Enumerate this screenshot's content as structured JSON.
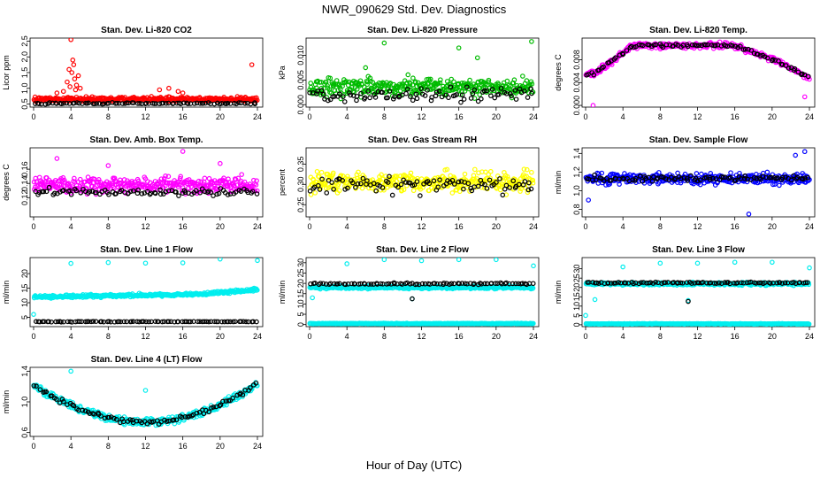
{
  "title": "NWR_090629  Std. Dev. Diagnostics",
  "xlabel": "Hour of Day (UTC)",
  "chart_data": [
    {
      "type": "scatter",
      "title": "Stan. Dev. Li-820 CO2",
      "ylabel": "Licor ppm",
      "xlim": [
        0,
        24
      ],
      "xticks": [
        "0",
        "4",
        "8",
        "12",
        "16",
        "20",
        "24"
      ],
      "ylim": [
        0.4,
        2.6
      ],
      "yticks": [
        "0.5",
        "1.0",
        "1.5",
        "2.0",
        "2.5"
      ],
      "ytick_values": [
        0.5,
        1.0,
        1.5,
        2.0,
        2.5
      ],
      "series": [
        {
          "color": "#ff0000",
          "base": 0.65,
          "spread": 0.12,
          "x": [
            3.6,
            3.8,
            4.0,
            4.1,
            4.2,
            4.4,
            4.6,
            4.8,
            5.0,
            4.3,
            3.9,
            4.5,
            13.5,
            14.5,
            15.5,
            16.0,
            23.4,
            3.2,
            2.5
          ],
          "y": [
            1.2,
            1.6,
            2.55,
            1.5,
            1.9,
            1.3,
            1.1,
            1.4,
            1.0,
            1.75,
            1.05,
            0.95,
            0.95,
            1.0,
            0.9,
            0.85,
            1.75,
            0.9,
            0.85
          ]
        },
        {
          "color": "#000000",
          "base": 0.52,
          "spread": 0.04,
          "x": [],
          "y": []
        }
      ]
    },
    {
      "type": "scatter",
      "title": "Stan. Dev. Li-820 Pressure",
      "ylabel": "kPa",
      "xlim": [
        0,
        24
      ],
      "xticks": [
        "0",
        "4",
        "8",
        "12",
        "16",
        "20",
        "24"
      ],
      "ylim": [
        -0.0005,
        0.0135
      ],
      "yticks": [
        "0.000",
        "0.005",
        "0.010"
      ],
      "ytick_values": [
        0.0,
        0.005,
        0.01
      ],
      "series": [
        {
          "color": "#00bb00",
          "base": 0.0035,
          "spread": 0.003,
          "x": [
            8.0,
            16.0,
            23.8,
            18.0,
            6.0
          ],
          "y": [
            0.0125,
            0.0115,
            0.0128,
            0.0095,
            0.0075
          ]
        },
        {
          "color": "#000000",
          "base": 0.002,
          "spread": 0.0022,
          "x": [],
          "y": []
        }
      ]
    },
    {
      "type": "scatter",
      "title": "Stan. Dev. Li-820 Temp.",
      "ylabel": "degrees C",
      "xlim": [
        0,
        24
      ],
      "xticks": [
        "0",
        "4",
        "8",
        "12",
        "16",
        "20",
        "24"
      ],
      "ylim": [
        -0.0003,
        0.0118
      ],
      "yticks": [
        "0.000",
        "0.004",
        "0.008"
      ],
      "ytick_values": [
        0.0,
        0.004,
        0.008
      ],
      "series": [
        {
          "color": "#ff00ff",
          "profile": "temp",
          "spread": 0.0008,
          "x": [
            0.8,
            23.5
          ],
          "y": [
            0.0,
            0.0015
          ]
        },
        {
          "color": "#000000",
          "profile": "temp",
          "spread": 0.0005,
          "x": [],
          "y": []
        }
      ]
    },
    {
      "type": "scatter",
      "title": "Stan. Dev. Amb. Box Temp.",
      "ylabel": "degrees C",
      "xlim": [
        0,
        24
      ],
      "xticks": [
        "0",
        "4",
        "8",
        "12",
        "16",
        "20",
        "24"
      ],
      "ylim": [
        0.093,
        0.19
      ],
      "yticks": [
        "0.12",
        "0.14",
        "0.16"
      ],
      "ytick_values": [
        0.12,
        0.14,
        0.16
      ],
      "series": [
        {
          "color": "#ff00ff",
          "base": 0.138,
          "spread": 0.018,
          "x": [
            16.0,
            2.5,
            8.0,
            20.0
          ],
          "y": [
            0.185,
            0.175,
            0.165,
            0.168
          ]
        },
        {
          "color": "#000000",
          "base": 0.128,
          "spread": 0.008,
          "x": [],
          "y": []
        }
      ]
    },
    {
      "type": "scatter",
      "title": "Stan. Dev. Gas Stream RH",
      "ylabel": "percent",
      "xlim": [
        0,
        24
      ],
      "xticks": [
        "0",
        "4",
        "8",
        "12",
        "16",
        "20",
        "24"
      ],
      "ylim": [
        0.22,
        0.39
      ],
      "yticks": [
        "0.25",
        "0.30",
        "0.35"
      ],
      "ytick_values": [
        0.25,
        0.3,
        0.35
      ],
      "series": [
        {
          "color": "#ffff00",
          "base": 0.305,
          "spread": 0.04,
          "x": [],
          "y": []
        },
        {
          "color": "#000000",
          "base": 0.3,
          "spread": 0.035,
          "x": [],
          "y": []
        }
      ]
    },
    {
      "type": "scatter",
      "title": "Stan. Dev. Sample Flow",
      "ylabel": "ml/min",
      "xlim": [
        0,
        24
      ],
      "xticks": [
        "0",
        "4",
        "8",
        "12",
        "16",
        "20",
        "24"
      ],
      "ylim": [
        0.72,
        1.46
      ],
      "yticks": [
        "0.8",
        "1.0",
        "1.2",
        "1.4"
      ],
      "ytick_values": [
        0.8,
        1.0,
        1.2,
        1.4
      ],
      "series": [
        {
          "color": "#0000ff",
          "base": 1.13,
          "spread": 0.1,
          "x": [
            17.5,
            0.3,
            23.5,
            22.5
          ],
          "y": [
            0.75,
            0.9,
            1.42,
            1.38
          ]
        },
        {
          "color": "#000000",
          "base": 1.13,
          "spread": 0.05,
          "x": [],
          "y": []
        }
      ]
    },
    {
      "type": "scatter",
      "title": "Stan. Dev. Line 1 Flow",
      "ylabel": "ml/min",
      "xlim": [
        0,
        24
      ],
      "xticks": [
        "0",
        "4",
        "8",
        "12",
        "16",
        "20",
        "24"
      ],
      "ylim": [
        1.8,
        25.5
      ],
      "yticks": [
        "5",
        "10",
        "15",
        "20"
      ],
      "ytick_values": [
        5,
        10,
        15,
        20
      ],
      "series": [
        {
          "color": "#00eeee",
          "profile": "line1",
          "spread": 0.8,
          "x": [
            4.0,
            8.0,
            12.0,
            16.0,
            20.0,
            24.0,
            0.0
          ],
          "y": [
            23.5,
            23.8,
            23.6,
            23.7,
            25.0,
            24.5,
            6.0
          ]
        },
        {
          "color": "#000000",
          "base": 3.5,
          "spread": 0.15,
          "x": [],
          "y": []
        }
      ]
    },
    {
      "type": "scatter",
      "title": "Stan. Dev. Line 2 Flow",
      "ylabel": "ml/min",
      "xlim": [
        0,
        24
      ],
      "xticks": [
        "0",
        "4",
        "8",
        "12",
        "16",
        "20",
        "24"
      ],
      "ylim": [
        -1,
        32.5
      ],
      "yticks": [
        "0",
        "5",
        "10",
        "15",
        "20",
        "25",
        "30"
      ],
      "ytick_values": [
        0,
        5,
        10,
        15,
        20,
        25,
        30
      ],
      "series": [
        {
          "color": "#00eeee",
          "base": 18.0,
          "spread": 1.2,
          "x": [
            4.0,
            8.0,
            12.0,
            16.0,
            20.0,
            24.0,
            0.3,
            11.0
          ],
          "y": [
            29.5,
            31.5,
            31.0,
            31.5,
            31.5,
            28.5,
            13.0,
            12.5
          ]
        },
        {
          "color": "#000000",
          "base": 19.8,
          "spread": 0.6,
          "x": [
            11.0
          ],
          "y": [
            12.5
          ]
        },
        {
          "color": "#00eeee",
          "base": 0.5,
          "spread": 0.3,
          "x": [],
          "y": []
        }
      ]
    },
    {
      "type": "scatter",
      "title": "Stan. Dev. Line 3 Flow",
      "ylabel": "ml/min",
      "xlim": [
        0,
        24
      ],
      "xticks": [
        "0",
        "4",
        "8",
        "12",
        "16",
        "20",
        "24"
      ],
      "ylim": [
        -1,
        36
      ],
      "yticks": [
        "0",
        "5",
        "10",
        "15",
        "20",
        "25",
        "30"
      ],
      "ytick_values": [
        0,
        5,
        10,
        15,
        20,
        25,
        30
      ],
      "series": [
        {
          "color": "#00eeee",
          "base": 22.0,
          "spread": 1.2,
          "x": [
            1.0,
            4.0,
            8.0,
            12.0,
            16.0,
            20.0,
            24.0,
            0.0,
            11.0
          ],
          "y": [
            13.5,
            31.0,
            33.0,
            33.0,
            33.5,
            33.5,
            30.5,
            5.0,
            13.0
          ]
        },
        {
          "color": "#000000",
          "base": 22.5,
          "spread": 0.6,
          "x": [
            11.0
          ],
          "y": [
            12.5
          ]
        },
        {
          "color": "#00eeee",
          "base": 0.5,
          "spread": 0.3,
          "x": [],
          "y": []
        }
      ]
    },
    {
      "type": "scatter",
      "title": "Stan. Dev. Line 4 (LT) Flow",
      "ylabel": "ml/min",
      "xlim": [
        0,
        24
      ],
      "xticks": [
        "0",
        "4",
        "8",
        "12",
        "16",
        "20",
        "24"
      ],
      "ylim": [
        0.55,
        1.45
      ],
      "yticks": [
        "0.6",
        "1.0",
        "1.4"
      ],
      "ytick_values": [
        0.6,
        1.0,
        1.4
      ],
      "series": [
        {
          "color": "#00eeee",
          "profile": "line4",
          "spread": 0.08,
          "x": [
            4.0,
            12.0
          ],
          "y": [
            1.4,
            1.15
          ]
        },
        {
          "color": "#000000",
          "profile": "line4",
          "spread": 0.05,
          "x": [],
          "y": []
        }
      ]
    }
  ]
}
